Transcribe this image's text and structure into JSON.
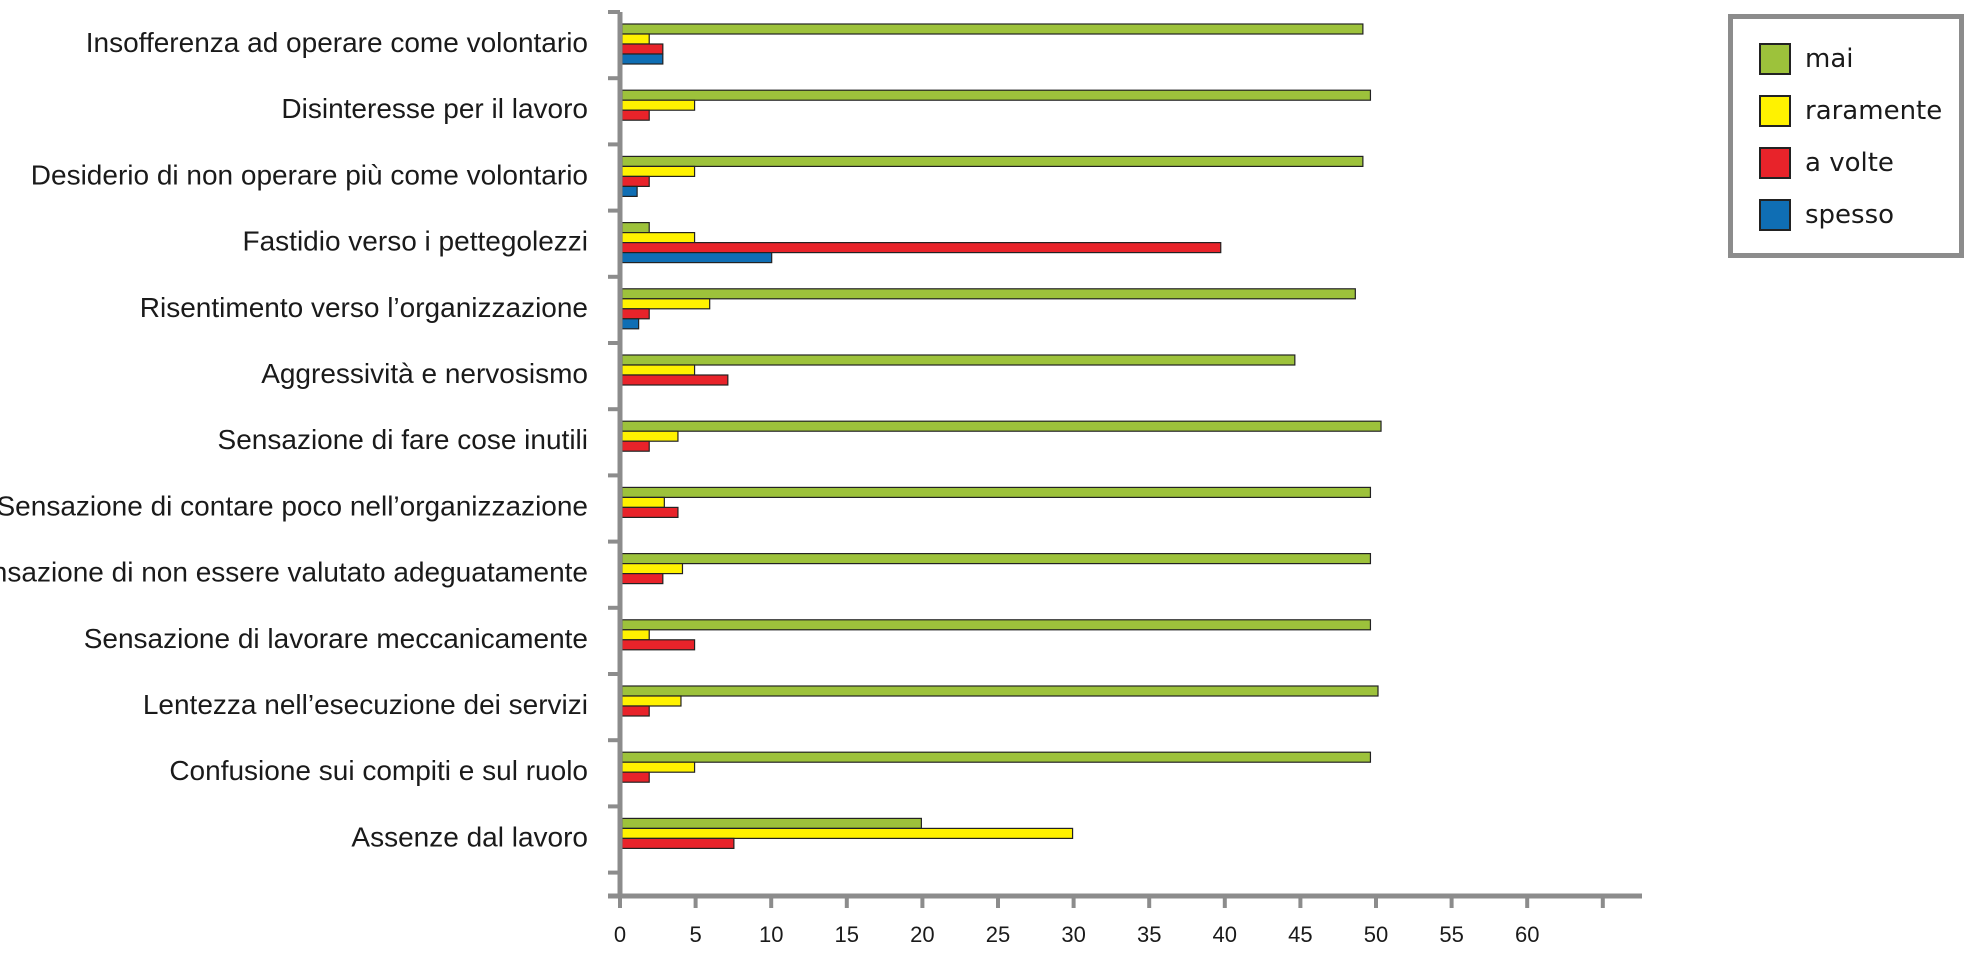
{
  "chart_data": {
    "type": "bar",
    "orientation": "horizontal",
    "categories": [
      "Insofferenza ad operare come volontario",
      "Disinteresse per il lavoro",
      "Desiderio di non operare più come volontario",
      "Fastidio verso i pettegolezzi",
      "Risentimento verso l’organizzazione",
      "Aggressività e nervosismo",
      "Sensazione di fare cose inutili",
      "Sensazione di contare poco nell’organizzazione",
      "Sensazione di non essere valutato adeguatamente",
      "Sensazione di lavorare meccanicamente",
      "Lentezza nell’esecuzione dei servizi",
      "Confusione sui compiti e sul ruolo",
      "Assenze dal lavoro"
    ],
    "series": [
      {
        "name": "mai",
        "color": "#9dc23b",
        "values": [
          49,
          49.5,
          49,
          1.8,
          48.5,
          44.5,
          50.2,
          49.5,
          49.5,
          49.5,
          50,
          49.5,
          19.8
        ]
      },
      {
        "name": "raramente",
        "color": "#fff200",
        "values": [
          1.8,
          4.8,
          4.8,
          4.8,
          5.8,
          4.8,
          3.7,
          2.8,
          4,
          1.8,
          3.9,
          4.8,
          29.8
        ]
      },
      {
        "name": "a volte",
        "color": "#e8232a",
        "values": [
          2.7,
          1.8,
          1.8,
          39.6,
          1.8,
          7,
          1.8,
          3.7,
          2.7,
          4.8,
          1.8,
          1.8,
          7.4
        ]
      },
      {
        "name": "spesso",
        "color": "#0f6eb4",
        "values": [
          2.7,
          0,
          1,
          9.9,
          1.1,
          0,
          0,
          0,
          0,
          0,
          0,
          0,
          0
        ]
      }
    ],
    "xlim": [
      0,
      67
    ],
    "xticks": [
      "0",
      "5",
      "10",
      "15",
      "20",
      "25",
      "30",
      "35",
      "40",
      "45",
      "50",
      "55",
      "60"
    ],
    "title": "",
    "xlabel": "",
    "ylabel": "",
    "legend_position": "top-right",
    "grid": false
  }
}
